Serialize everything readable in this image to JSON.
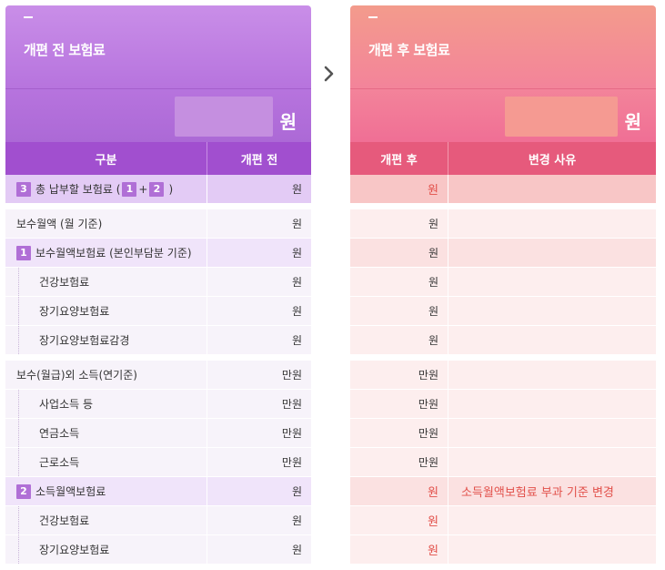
{
  "before": {
    "title": "개편 전 보험료",
    "unit": "원",
    "headers": {
      "gubun": "구분",
      "before": "개편 전"
    }
  },
  "after": {
    "title": "개편 후 보험료",
    "unit": "원",
    "headers": {
      "after": "개편 후",
      "reason": "변경 사유"
    }
  },
  "rows": [
    {
      "label": "총 납부할 보험료 (",
      "badge": "3",
      "formula": {
        "a": "1",
        "op": "+",
        "b": "2",
        "close": ")"
      },
      "before_unit": "원",
      "after_unit": "원",
      "reason": ""
    },
    {
      "label": "보수월액 (월 기준)",
      "before_unit": "원",
      "after_unit": "원",
      "reason": ""
    },
    {
      "label": "보수월액보험료 (본인부담분 기준)",
      "badge": "1",
      "before_unit": "원",
      "after_unit": "원",
      "reason": ""
    },
    {
      "label": "건강보험료",
      "before_unit": "원",
      "after_unit": "원",
      "reason": ""
    },
    {
      "label": "장기요양보험료",
      "before_unit": "원",
      "after_unit": "원",
      "reason": ""
    },
    {
      "label": "장기요양보험료감경",
      "before_unit": "원",
      "after_unit": "원",
      "reason": ""
    },
    {
      "label": "보수(월급)외 소득(연기준)",
      "before_unit": "만원",
      "after_unit": "만원",
      "reason": ""
    },
    {
      "label": "사업소득 등",
      "before_unit": "만원",
      "after_unit": "만원",
      "reason": ""
    },
    {
      "label": "연금소득",
      "before_unit": "만원",
      "after_unit": "만원",
      "reason": ""
    },
    {
      "label": "근로소득",
      "before_unit": "만원",
      "after_unit": "만원",
      "reason": ""
    },
    {
      "label": "소득월액보험료",
      "badge": "2",
      "before_unit": "원",
      "after_unit": "원",
      "reason": "소득월액보험료 부과 기준 변경"
    },
    {
      "label": "건강보험료",
      "before_unit": "원",
      "after_unit": "원",
      "reason": ""
    },
    {
      "label": "장기요양보험료",
      "before_unit": "원",
      "after_unit": "원",
      "reason": ""
    }
  ]
}
